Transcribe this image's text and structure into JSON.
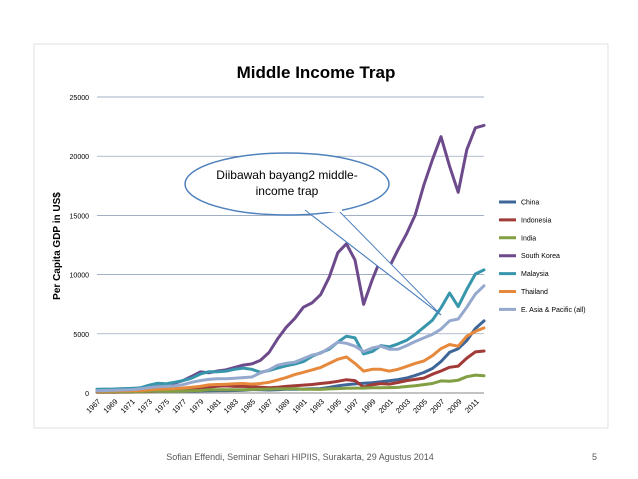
{
  "chart_data": {
    "type": "line",
    "title": "Middle Income Trap",
    "xlabel": "",
    "ylabel": "Per Capita GDP in US$",
    "ylim": [
      0,
      25000
    ],
    "yticks": [
      0,
      5000,
      10000,
      15000,
      20000,
      25000
    ],
    "grid": true,
    "legend_position": "right",
    "x": [
      1967,
      1968,
      1969,
      1970,
      1971,
      1972,
      1973,
      1974,
      1975,
      1976,
      1977,
      1978,
      1979,
      1980,
      1981,
      1982,
      1983,
      1984,
      1985,
      1986,
      1987,
      1988,
      1989,
      1990,
      1991,
      1992,
      1993,
      1994,
      1995,
      1996,
      1997,
      1998,
      1999,
      2000,
      2001,
      2002,
      2003,
      2004,
      2005,
      2006,
      2007,
      2008,
      2009,
      2010,
      2011,
      2012
    ],
    "x_tick_labels": [
      "1967",
      "1969",
      "1971",
      "1973",
      "1975",
      "1977",
      "1979",
      "1981",
      "1983",
      "1985",
      "1987",
      "1989",
      "1991",
      "1993",
      "1995",
      "1997",
      "1999",
      "2001",
      "2003",
      "2005",
      "2007",
      "2009",
      "2011"
    ],
    "series": [
      {
        "name": "China",
        "color": "#3F6699",
        "values": [
          90,
          90,
          90,
          110,
          120,
          130,
          150,
          160,
          180,
          160,
          180,
          160,
          180,
          190,
          200,
          200,
          210,
          240,
          290,
          280,
          250,
          280,
          310,
          320,
          330,
          360,
          370,
          470,
          600,
          700,
          770,
          820,
          870,
          950,
          1040,
          1130,
          1270,
          1490,
          1730,
          2070,
          2650,
          3440,
          3740,
          4430,
          5450,
          6090
        ]
      },
      {
        "name": "Indonesia",
        "color": "#A13B38",
        "values": [
          60,
          60,
          70,
          80,
          80,
          90,
          120,
          170,
          220,
          270,
          330,
          380,
          400,
          490,
          570,
          600,
          560,
          560,
          540,
          490,
          450,
          490,
          560,
          620,
          670,
          720,
          800,
          880,
          990,
          1120,
          1050,
          500,
          700,
          790,
          750,
          890,
          1050,
          1150,
          1260,
          1590,
          1860,
          2170,
          2270,
          2950,
          3470,
          3550
        ]
      },
      {
        "name": "India",
        "color": "#82A043",
        "values": [
          90,
          90,
          100,
          110,
          110,
          120,
          140,
          160,
          160,
          150,
          170,
          190,
          210,
          270,
          270,
          270,
          280,
          270,
          300,
          310,
          330,
          350,
          350,
          370,
          310,
          320,
          300,
          350,
          370,
          400,
          410,
          410,
          440,
          450,
          460,
          470,
          550,
          620,
          710,
          800,
          1020,
          1000,
          1080,
          1380,
          1510,
          1450
        ]
      },
      {
        "name": "South Korea",
        "color": "#6C4A8B",
        "values": [
          140,
          170,
          220,
          280,
          300,
          330,
          410,
          560,
          610,
          830,
          1050,
          1400,
          1780,
          1710,
          1860,
          1960,
          2150,
          2360,
          2460,
          2750,
          3420,
          4570,
          5550,
          6300,
          7250,
          7610,
          8300,
          9780,
          11850,
          12600,
          11230,
          7480,
          9550,
          11350,
          10650,
          12100,
          13450,
          15030,
          17550,
          19700,
          21650,
          19150,
          16950,
          20550,
          22400,
          22600
        ]
      },
      {
        "name": "Malaysia",
        "color": "#3796AB",
        "values": [
          320,
          330,
          340,
          370,
          390,
          430,
          650,
          820,
          780,
          900,
          1050,
          1250,
          1600,
          1800,
          1800,
          1850,
          2000,
          2100,
          2000,
          1750,
          1900,
          2100,
          2300,
          2450,
          2650,
          3100,
          3400,
          3700,
          4300,
          4800,
          4650,
          3300,
          3500,
          4000,
          3900,
          4150,
          4450,
          4950,
          5550,
          6150,
          7200,
          8450,
          7300,
          8750,
          10050,
          10400
        ]
      },
      {
        "name": "Thailand",
        "color": "#E6893C",
        "values": [
          160,
          170,
          180,
          190,
          200,
          210,
          260,
          320,
          340,
          370,
          420,
          490,
          560,
          680,
          720,
          740,
          780,
          800,
          750,
          800,
          900,
          1100,
          1300,
          1550,
          1750,
          1950,
          2150,
          2500,
          2850,
          3050,
          2500,
          1850,
          2000,
          2000,
          1850,
          2000,
          2250,
          2500,
          2700,
          3150,
          3750,
          4100,
          3950,
          4800,
          5200,
          5500
        ]
      },
      {
        "name": "E. Asia & Pacific (all)",
        "color": "#95A8CD",
        "values": [
          200,
          210,
          230,
          260,
          290,
          350,
          460,
          520,
          560,
          600,
          700,
          900,
          1050,
          1150,
          1200,
          1200,
          1250,
          1300,
          1350,
          1700,
          1950,
          2350,
          2500,
          2600,
          2900,
          3200,
          3350,
          3800,
          4300,
          4200,
          3950,
          3500,
          3800,
          3950,
          3700,
          3700,
          4000,
          4350,
          4650,
          4950,
          5400,
          6100,
          6250,
          7250,
          8350,
          9050
        ]
      }
    ],
    "annotation": {
      "lines": [
        "Diibawah bayang2 middle-",
        "income trap"
      ]
    }
  },
  "footer": {
    "text": "Sofian Effendi, Seminar Sehari HIPIIS, Surakarta, 29 Agustus 2014",
    "slide_number": "5"
  }
}
